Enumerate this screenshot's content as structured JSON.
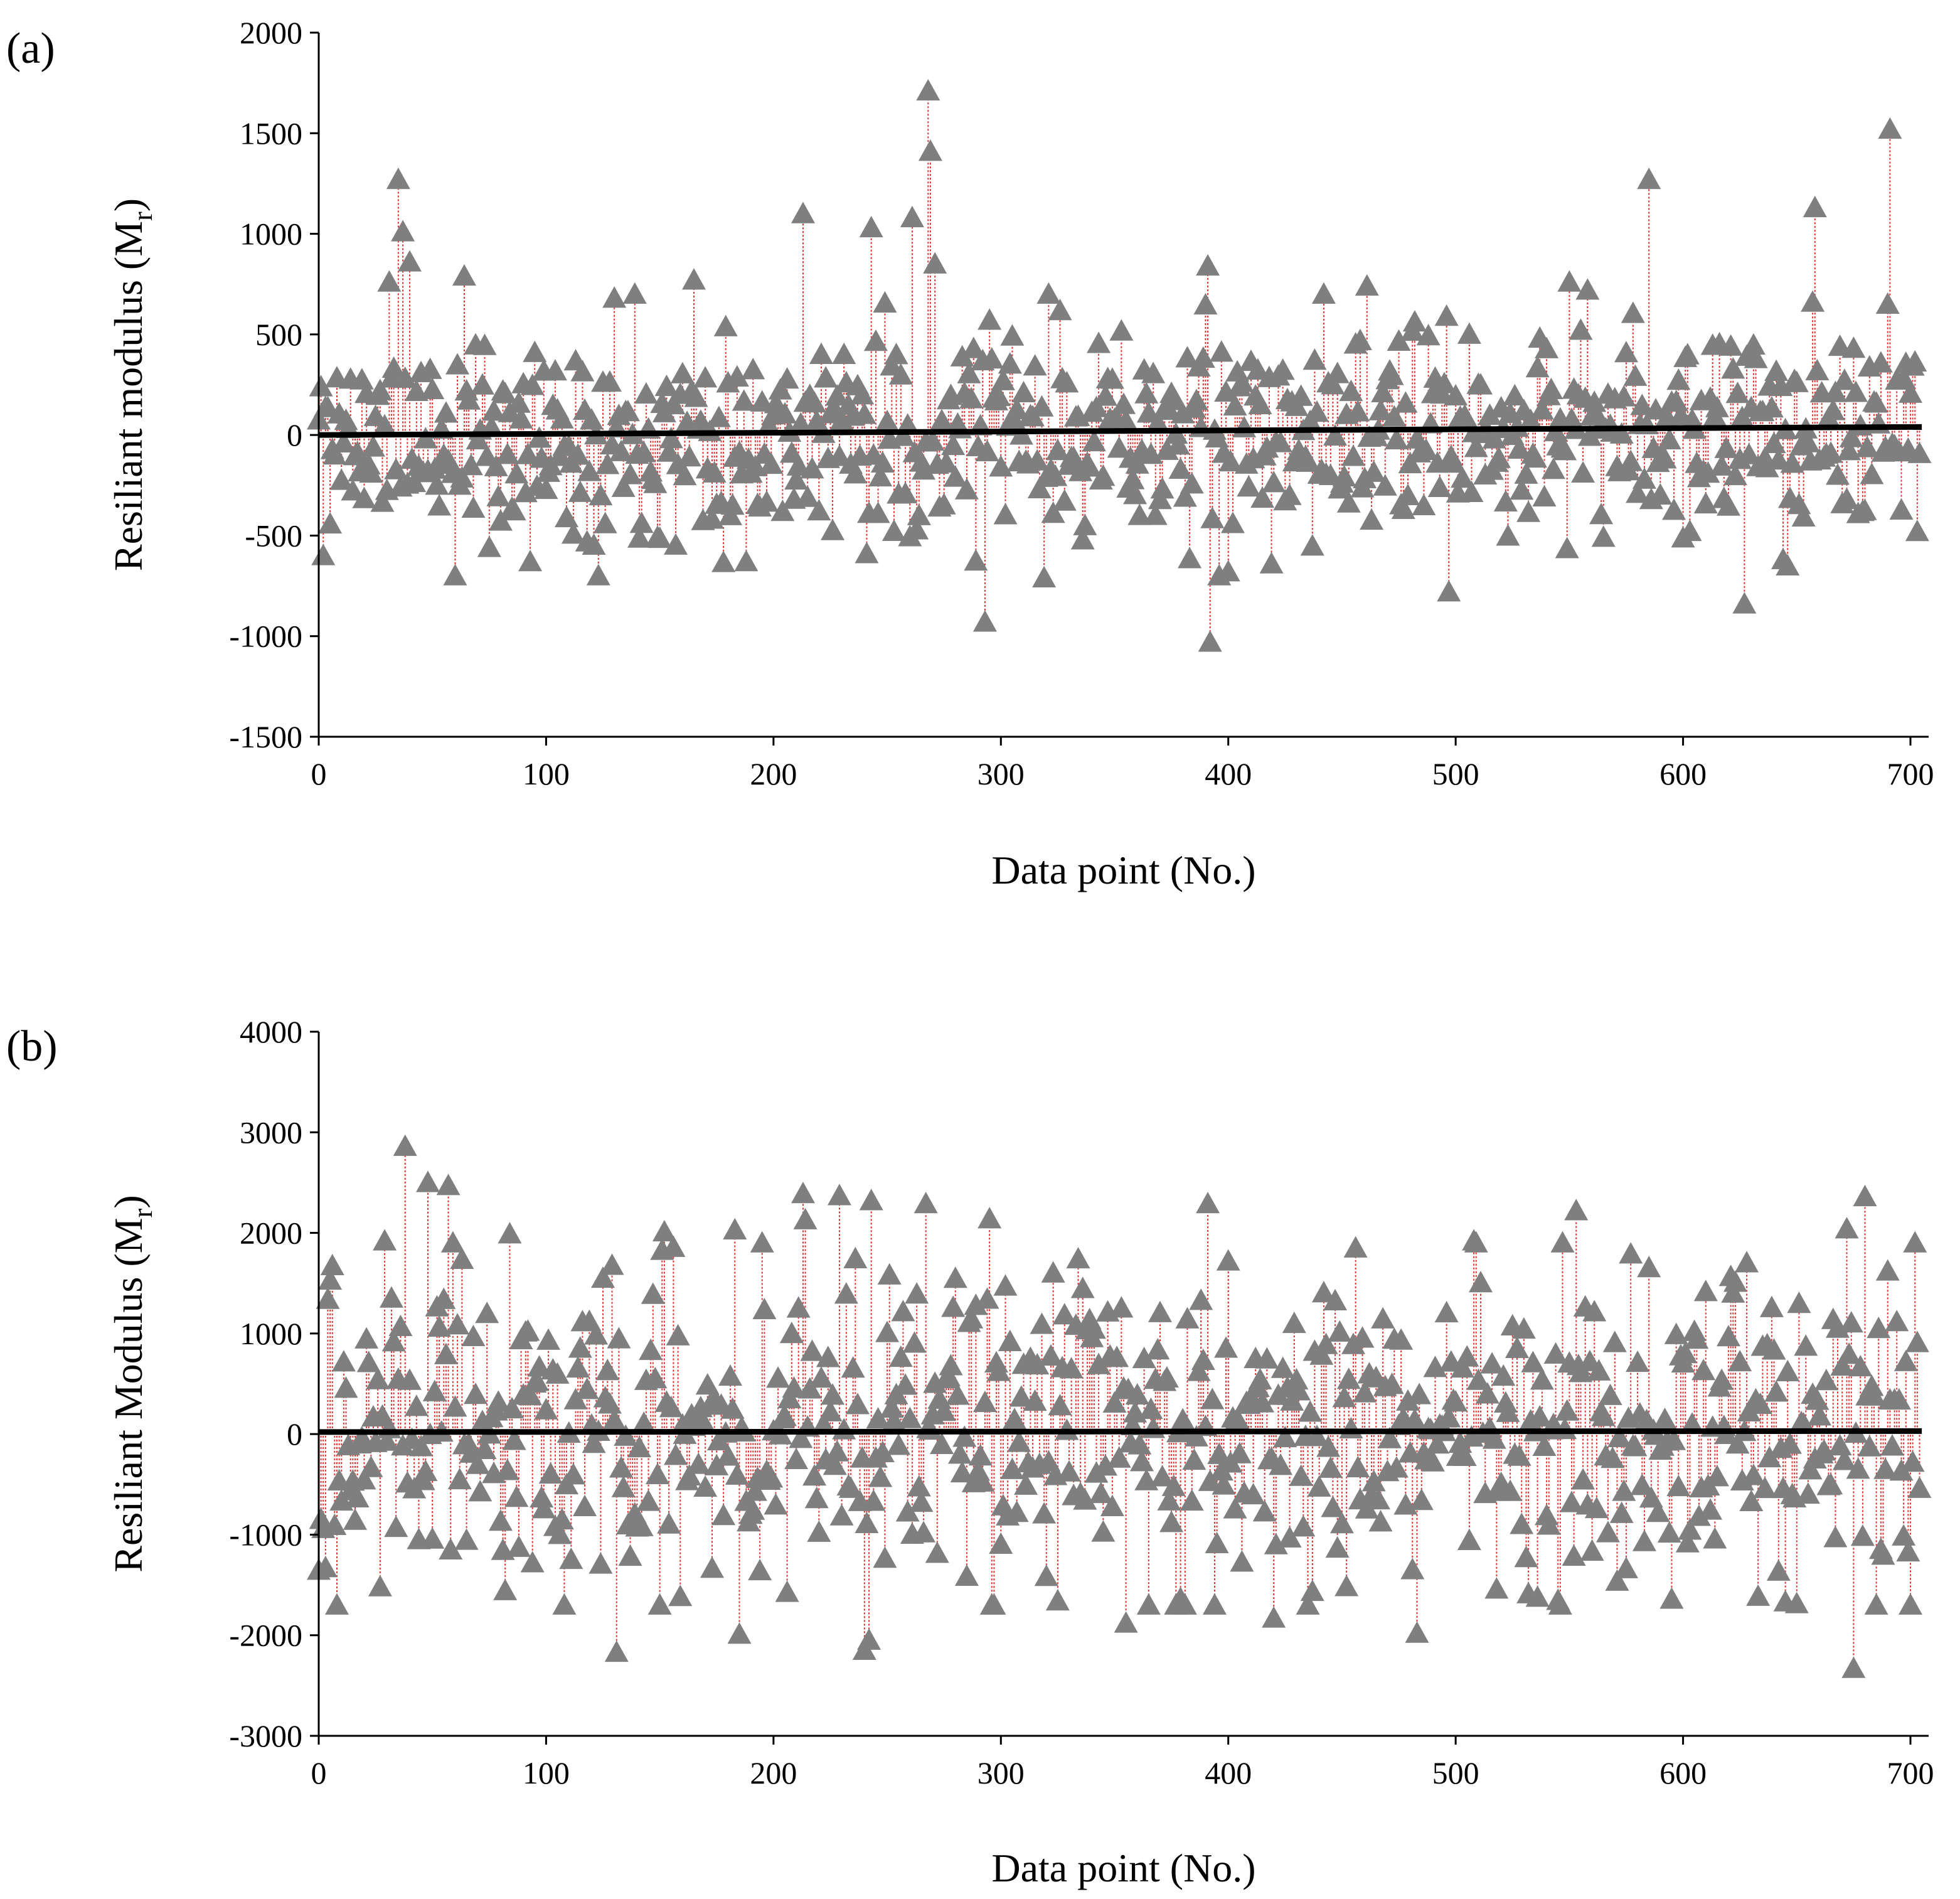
{
  "chart_data": [
    {
      "panel_label": "(a)",
      "type": "scatter",
      "xlabel": "Data point (No.)",
      "ylabel_main": "Resiliant modulus (M",
      "ylabel_sub": "r",
      "ylabel_close": ")",
      "xlim": [
        0,
        708
      ],
      "ylim": [
        -1500,
        2000
      ],
      "x_ticks": [
        0,
        100,
        200,
        300,
        400,
        500,
        600,
        700
      ],
      "x_tick_labels": [
        "0",
        "100",
        "200",
        "300",
        "400",
        "500",
        "600",
        "700"
      ],
      "y_ticks": [
        -1500,
        -1000,
        -500,
        0,
        500,
        1000,
        1500,
        2000
      ],
      "y_tick_labels": [
        "-1500",
        "-1000",
        "-500",
        "0",
        "500",
        "1000",
        "1500",
        "2000"
      ],
      "marker": "triangle",
      "marker_color": "#7f7f7f",
      "stem_color": "#e03030",
      "trend_color": "#000000",
      "trend_line": {
        "x": [
          0,
          705
        ],
        "y": [
          0,
          40
        ]
      },
      "n_points": 705,
      "seed": 11,
      "spread": 250,
      "clip": [
        -700,
        850
      ],
      "highlights": [
        {
          "x": 2,
          "y": -600
        },
        {
          "x": 35,
          "y": 1270
        },
        {
          "x": 37,
          "y": 1010
        },
        {
          "x": 40,
          "y": 860
        },
        {
          "x": 31,
          "y": 760
        },
        {
          "x": 64,
          "y": 790
        },
        {
          "x": 60,
          "y": -700
        },
        {
          "x": 93,
          "y": -630
        },
        {
          "x": 130,
          "y": 680
        },
        {
          "x": 139,
          "y": 700
        },
        {
          "x": 165,
          "y": 770
        },
        {
          "x": 188,
          "y": -630
        },
        {
          "x": 213,
          "y": 1100
        },
        {
          "x": 243,
          "y": 1030
        },
        {
          "x": 241,
          "y": -590
        },
        {
          "x": 261,
          "y": 1080
        },
        {
          "x": 268,
          "y": 1710
        },
        {
          "x": 269,
          "y": 1410
        },
        {
          "x": 271,
          "y": 850
        },
        {
          "x": 293,
          "y": -930
        },
        {
          "x": 319,
          "y": -710
        },
        {
          "x": 321,
          "y": 700
        },
        {
          "x": 391,
          "y": 840
        },
        {
          "x": 392,
          "y": -1030
        },
        {
          "x": 396,
          "y": -700
        },
        {
          "x": 400,
          "y": -680
        },
        {
          "x": 442,
          "y": 700
        },
        {
          "x": 461,
          "y": 740
        },
        {
          "x": 497,
          "y": -780
        },
        {
          "x": 496,
          "y": 590
        },
        {
          "x": 550,
          "y": 760
        },
        {
          "x": 558,
          "y": 720
        },
        {
          "x": 585,
          "y": 1270
        },
        {
          "x": 627,
          "y": -840
        },
        {
          "x": 658,
          "y": 1130
        },
        {
          "x": 657,
          "y": 660
        },
        {
          "x": 691,
          "y": 1520
        },
        {
          "x": 690,
          "y": 650
        },
        {
          "x": 703,
          "y": -480
        }
      ]
    },
    {
      "panel_label": "(b)",
      "type": "scatter",
      "xlabel": "Data point (No.)",
      "ylabel_main": "Resiliant Modulus (M",
      "ylabel_sub": "r",
      "ylabel_close": ")",
      "xlim": [
        0,
        708
      ],
      "ylim": [
        -3000,
        4000
      ],
      "x_ticks": [
        0,
        100,
        200,
        300,
        400,
        500,
        600,
        700
      ],
      "x_tick_labels": [
        "0",
        "100",
        "200",
        "300",
        "400",
        "500",
        "600",
        "700"
      ],
      "y_ticks": [
        -3000,
        -2000,
        -1000,
        0,
        1000,
        2000,
        3000,
        4000
      ],
      "y_tick_labels": [
        "-3000",
        "-2000",
        "-1000",
        "0",
        "1000",
        "2000",
        "3000",
        "4000"
      ],
      "marker": "triangle",
      "marker_color": "#7f7f7f",
      "stem_color": "#e03030",
      "trend_color": "#000000",
      "trend_line": {
        "x": [
          0,
          705
        ],
        "y": [
          20,
          30
        ]
      },
      "n_points": 705,
      "seed": 29,
      "spread": 820,
      "clip": [
        -1700,
        1900
      ],
      "highlights": [
        {
          "x": 38,
          "y": 2860
        },
        {
          "x": 48,
          "y": 2500
        },
        {
          "x": 57,
          "y": 2470
        },
        {
          "x": 29,
          "y": 1920
        },
        {
          "x": 5,
          "y": 1530
        },
        {
          "x": 84,
          "y": 1990
        },
        {
          "x": 131,
          "y": -2170
        },
        {
          "x": 152,
          "y": 2010
        },
        {
          "x": 183,
          "y": 2030
        },
        {
          "x": 185,
          "y": -1990
        },
        {
          "x": 213,
          "y": 2390
        },
        {
          "x": 214,
          "y": 2130
        },
        {
          "x": 229,
          "y": 2370
        },
        {
          "x": 240,
          "y": -2150
        },
        {
          "x": 242,
          "y": -2050
        },
        {
          "x": 243,
          "y": 2320
        },
        {
          "x": 267,
          "y": 2290
        },
        {
          "x": 295,
          "y": 2140
        },
        {
          "x": 355,
          "y": -1880
        },
        {
          "x": 391,
          "y": 2290
        },
        {
          "x": 420,
          "y": -1830
        },
        {
          "x": 456,
          "y": 1850
        },
        {
          "x": 483,
          "y": -1980
        },
        {
          "x": 508,
          "y": 1920
        },
        {
          "x": 553,
          "y": 2220
        },
        {
          "x": 577,
          "y": 1790
        },
        {
          "x": 672,
          "y": 2040
        },
        {
          "x": 675,
          "y": -2330
        },
        {
          "x": 680,
          "y": 2360
        },
        {
          "x": 690,
          "y": 1620
        }
      ]
    }
  ]
}
